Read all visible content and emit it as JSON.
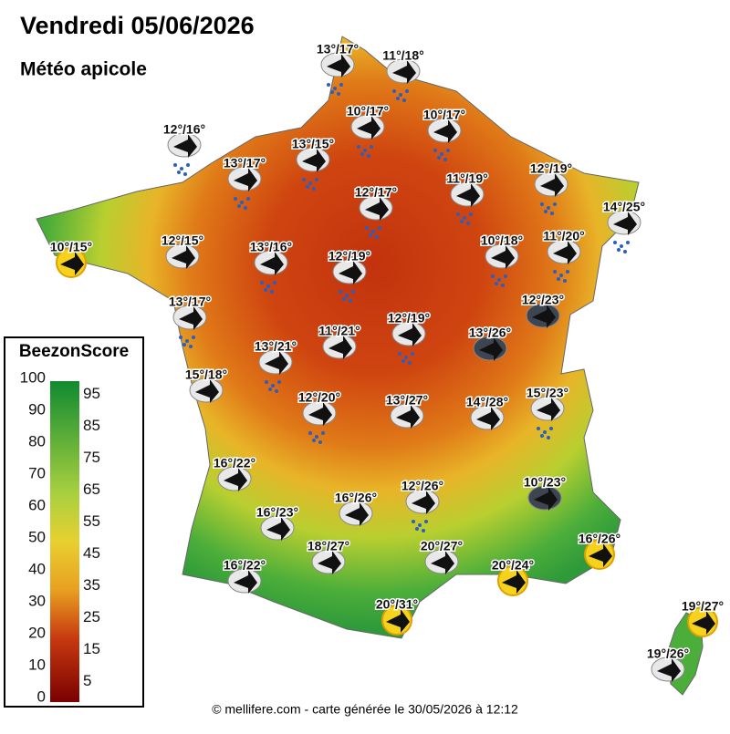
{
  "header": {
    "title": "Vendredi 05/06/2026",
    "subtitle": "Météo apicole"
  },
  "legend": {
    "title": "BeezonScore",
    "left_ticks": [
      100,
      90,
      80,
      70,
      60,
      50,
      40,
      30,
      20,
      10,
      0
    ],
    "right_ticks": [
      95,
      85,
      75,
      65,
      55,
      45,
      35,
      25,
      15,
      5
    ]
  },
  "stations": [
    "13°/17°",
    "11°/18°",
    "10°/17°",
    "10°/17°",
    "12°/16°",
    "13°/15°",
    "13°/17°",
    "11°/19°",
    "12°/19°",
    "12°/17°",
    "14°/25°",
    "10°/15°",
    "12°/15°",
    "13°/16°",
    "12°/19°",
    "10°/18°",
    "11°/20°",
    "12°/23°",
    "13°/17°",
    "12°/19°",
    "13°/26°",
    "11°/21°",
    "13°/21°",
    "15°/18°",
    "12°/20°",
    "13°/27°",
    "14°/28°",
    "15°/23°",
    "16°/22°",
    "10°/23°",
    "12°/26°",
    "16°/26°",
    "16°/23°",
    "16°/26°",
    "18°/27°",
    "20°/27°",
    "16°/22°",
    "20°/24°",
    "20°/31°",
    "19°/27°",
    "19°/26°"
  ],
  "footer": "© mellifere.com - carte générée le 30/05/2026 à 12:12"
}
